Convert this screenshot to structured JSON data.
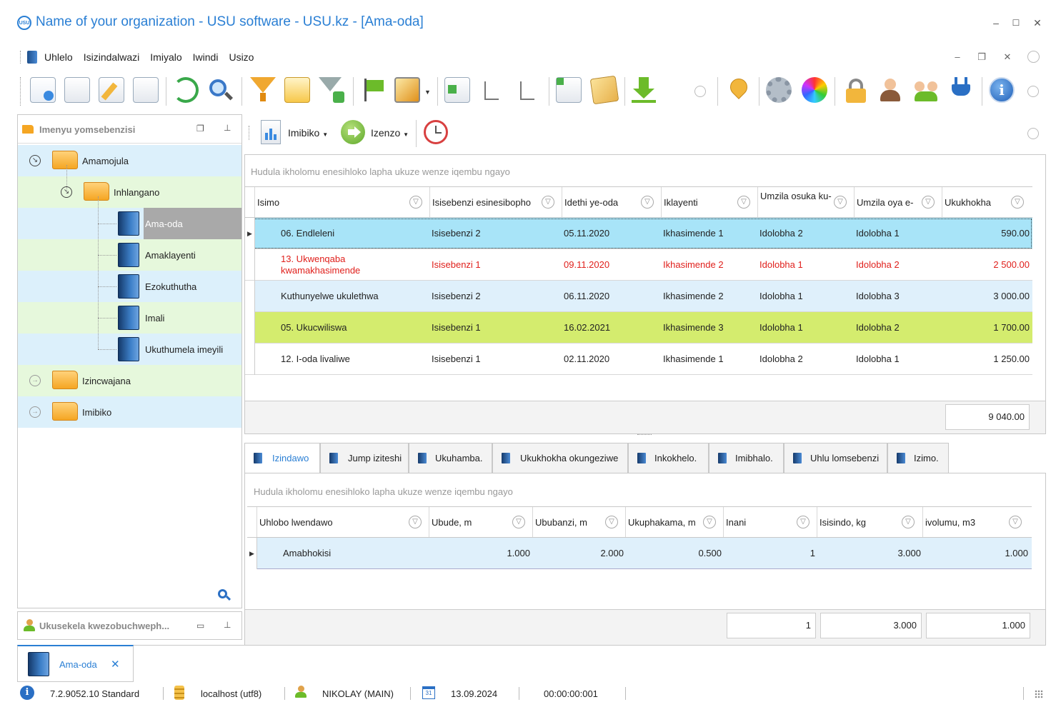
{
  "window": {
    "logo_text": "USU",
    "title": "Name of your organization - USU software - USU.kz - [Ama-oda]",
    "minimize": "–",
    "maximize": "☐",
    "close": "✕"
  },
  "menu": {
    "items": [
      "Uhlelo",
      "Isizindalwazi",
      "Imiyalo",
      "Iwindi",
      "Usizo"
    ],
    "mdi_minimize": "–",
    "mdi_restore": "❐",
    "mdi_close": "✕"
  },
  "left_panel": {
    "title": "Imenyu yomsebenzisi",
    "tree": {
      "root1": "Amamojula",
      "child1": "Inhlangano",
      "items": [
        "Ama-oda",
        "Amaklayenti",
        "Ezokuthutha",
        "Imali",
        "Ukuthumela imeyili"
      ],
      "root2": "Izincwajana",
      "root3": "Imibiko"
    },
    "user_panel_title": "Ukusekela kwezobuchweph..."
  },
  "report_bar": {
    "reports_label": "Imibiko",
    "actions_label": "Izenzo"
  },
  "main_grid": {
    "group_hint": "Hudula ikholomu enesihloko lapha ukuze wenze iqembu ngayo",
    "columns": [
      "Isimo",
      "Isisebenzi esinesibopho",
      "Idethi ye-oda",
      "Iklayenti",
      "Umzila osuka ku-",
      "Umzila oya e-",
      "Ukukhokha"
    ],
    "rows": [
      {
        "status": "06. Endleleni",
        "employee": "Isisebenzi 2",
        "date": "05.11.2020",
        "client": "Ikhasimende 1",
        "from": "Idolobha 2",
        "to": "Idolobha 1",
        "payment": "590.00"
      },
      {
        "status": "13. Ukwenqaba kwamakhasimende",
        "employee": "Isisebenzi 1",
        "date": "09.11.2020",
        "client": "Ikhasimende 2",
        "from": "Idolobha 1",
        "to": "Idolobha 2",
        "payment": "2 500.00"
      },
      {
        "status": "Kuthunyelwe ukulethwa",
        "employee": "Isisebenzi 2",
        "date": "06.11.2020",
        "client": "Ikhasimende 2",
        "from": "Idolobha 1",
        "to": "Idolobha 3",
        "payment": "3 000.00"
      },
      {
        "status": "05. Ukucwiliswa",
        "employee": "Isisebenzi 1",
        "date": "16.02.2021",
        "client": "Ikhasimende 3",
        "from": "Idolobha 1",
        "to": "Idolobha 2",
        "payment": "1 700.00"
      },
      {
        "status": "12. I-oda livaliwe",
        "employee": "Isisebenzi 1",
        "date": "02.11.2020",
        "client": "Ikhasimende 1",
        "from": "Idolobha 2",
        "to": "Idolobha 1",
        "payment": "1 250.00"
      }
    ],
    "total": "9 040.00",
    "row_colors": [
      "#a8e4f8",
      "#ffffff",
      "#dff0fb",
      "#d4ec6e",
      "#ffffff"
    ],
    "alert_color": "#e0201c"
  },
  "tabs": [
    "Izindawo",
    "Jump iziteshi",
    "Ukuhamba.",
    "Ukukhokha okungeziwe",
    "Inkokhelo.",
    "Imibhalo.",
    "Uhlu lomsebenzi",
    "Izimo."
  ],
  "sub_grid": {
    "group_hint": "Hudula ikholomu enesihloko lapha ukuze wenze iqembu ngayo",
    "columns": [
      "Uhlobo lwendawo",
      "Ubude, m",
      "Ububanzi, m",
      "Ukuphakama, m",
      "Inani",
      "Isisindo, kg",
      "ivolumu, m3"
    ],
    "row": {
      "type": "Amabhokisi",
      "length": "1.000",
      "width": "2.000",
      "height": "0.500",
      "qty": "1",
      "weight": "3.000",
      "volume": "1.000"
    },
    "totals": {
      "qty": "1",
      "weight": "3.000",
      "volume": "1.000"
    }
  },
  "doc_tab": {
    "label": "Ama-oda",
    "close": "✕"
  },
  "status": {
    "version": "7.2.9052.10 Standard",
    "db": "localhost (utf8)",
    "user": "NIKOLAY (MAIN)",
    "calendar_day": "31",
    "date": "13.09.2024",
    "timer": "00:00:00:001"
  }
}
